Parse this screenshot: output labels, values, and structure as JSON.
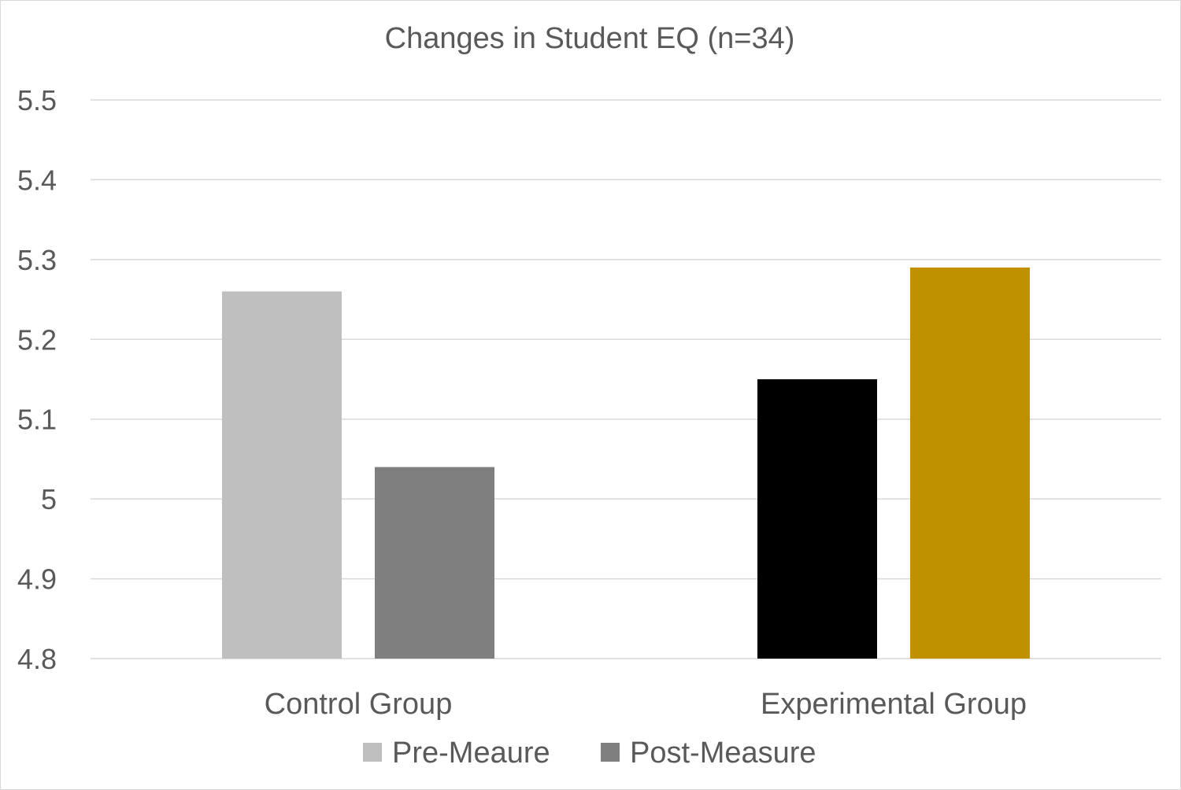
{
  "chart_data": {
    "type": "bar",
    "title": "Changes in Student EQ (n=34)",
    "xlabel": "",
    "ylabel": "",
    "ylim": [
      4.8,
      5.5
    ],
    "yticks": [
      "4.8",
      "4.9",
      "5",
      "5.1",
      "5.2",
      "5.3",
      "5.4",
      "5.5"
    ],
    "ytick_values": [
      4.8,
      4.9,
      5.0,
      5.1,
      5.2,
      5.3,
      5.4,
      5.5
    ],
    "grid": true,
    "legend_position": "bottom",
    "categories": [
      "Control Group",
      "Experimental Group"
    ],
    "series": [
      {
        "name": "Pre-Meaure",
        "values": [
          5.26,
          5.15
        ],
        "color": "#bfbfbf"
      },
      {
        "name": "Post-Measure",
        "values": [
          5.04,
          5.29
        ],
        "color": "#7f7f7f"
      }
    ],
    "bar_colors": [
      [
        "#bfbfbf",
        "#7f7f7f"
      ],
      [
        "#000000",
        "#bf9000"
      ]
    ]
  }
}
